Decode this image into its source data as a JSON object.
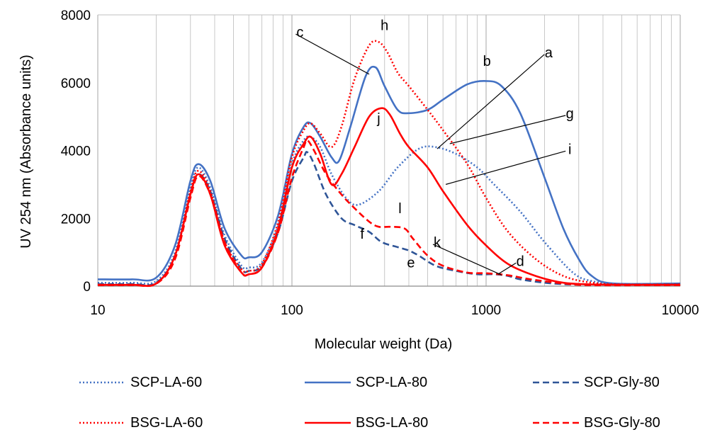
{
  "chart_data": {
    "type": "line",
    "xlabel": "Molecular weight (Da)",
    "ylabel": "UV 254 nm (Absorbance units)",
    "xscale": "log",
    "xlim": [
      10,
      10000
    ],
    "ylim": [
      0,
      8000
    ],
    "yticks": [
      "0",
      "2000",
      "4000",
      "6000",
      "8000"
    ],
    "xticks": [
      "10",
      "100",
      "1000",
      "10000"
    ],
    "xtick_values": [
      10,
      100,
      1000,
      10000
    ],
    "ytick_values": [
      0,
      2000,
      4000,
      6000,
      8000
    ],
    "grid": "vertical minor and major gridlines",
    "legend_position": "bottom",
    "colors": {
      "scp": "#4472c4",
      "bsg": "#ff0000"
    },
    "series": [
      {
        "name": "SCP-LA-60",
        "color": "#4472c4",
        "dash": "dotted",
        "x": [
          10,
          15,
          20,
          25,
          30,
          33,
          38,
          45,
          55,
          60,
          70,
          85,
          100,
          115,
          125,
          140,
          160,
          190,
          220,
          280,
          350,
          450,
          550,
          700,
          900,
          1100,
          1500,
          2000,
          2800,
          3500,
          5000,
          10000
        ],
        "y": [
          100,
          100,
          150,
          1000,
          2900,
          3500,
          2900,
          1500,
          600,
          550,
          700,
          1800,
          3600,
          4300,
          4400,
          4100,
          3300,
          2600,
          2400,
          2800,
          3500,
          4050,
          4100,
          3900,
          3500,
          3000,
          2200,
          1300,
          400,
          150,
          60,
          60
        ]
      },
      {
        "name": "SCP-LA-80",
        "color": "#4472c4",
        "dash": "solid",
        "x": [
          10,
          15,
          20,
          25,
          30,
          33,
          38,
          45,
          55,
          60,
          70,
          85,
          100,
          115,
          125,
          140,
          160,
          175,
          200,
          240,
          270,
          300,
          350,
          400,
          500,
          600,
          800,
          1000,
          1200,
          1500,
          2000,
          2500,
          3000,
          3500,
          4500,
          10000
        ],
        "y": [
          200,
          200,
          250,
          1200,
          3100,
          3600,
          3100,
          1700,
          900,
          850,
          1000,
          2100,
          3900,
          4700,
          4800,
          4400,
          3800,
          3700,
          4700,
          6200,
          6450,
          5900,
          5200,
          5100,
          5200,
          5500,
          5950,
          6050,
          5900,
          5100,
          3200,
          1700,
          800,
          300,
          80,
          80
        ]
      },
      {
        "name": "SCP-Gly-80",
        "color": "#2f5597",
        "dash": "dashed",
        "x": [
          10,
          15,
          20,
          25,
          30,
          33,
          38,
          45,
          55,
          60,
          70,
          85,
          100,
          115,
          120,
          130,
          150,
          180,
          210,
          250,
          290,
          350,
          400,
          450,
          550,
          700,
          900,
          1100,
          1300,
          1500,
          2000,
          2500,
          3000,
          10000
        ],
        "y": [
          60,
          60,
          100,
          900,
          2700,
          3300,
          2800,
          1400,
          500,
          450,
          600,
          1600,
          3100,
          3800,
          3950,
          3600,
          2700,
          2000,
          1800,
          1600,
          1300,
          1150,
          1050,
          900,
          600,
          450,
          350,
          350,
          300,
          200,
          100,
          60,
          50,
          50
        ]
      },
      {
        "name": "BSG-LA-60",
        "color": "#ff0000",
        "dash": "dotted",
        "x": [
          10,
          15,
          20,
          25,
          30,
          33,
          38,
          45,
          55,
          60,
          70,
          85,
          100,
          115,
          125,
          140,
          160,
          180,
          210,
          250,
          280,
          310,
          350,
          400,
          500,
          600,
          800,
          1000,
          1300,
          1800,
          2500,
          3500,
          5000,
          10000
        ],
        "y": [
          40,
          40,
          80,
          900,
          2800,
          3400,
          2800,
          1300,
          500,
          450,
          650,
          1900,
          3800,
          4600,
          4800,
          4500,
          4100,
          4700,
          6100,
          7100,
          7200,
          6900,
          6300,
          5900,
          5200,
          4600,
          3600,
          2600,
          1600,
          800,
          300,
          100,
          50,
          50
        ]
      },
      {
        "name": "BSG-LA-80",
        "color": "#ff0000",
        "dash": "solid",
        "x": [
          10,
          15,
          20,
          25,
          30,
          33,
          38,
          45,
          55,
          60,
          70,
          85,
          100,
          115,
          125,
          140,
          160,
          180,
          210,
          250,
          290,
          320,
          360,
          400,
          500,
          600,
          800,
          1000,
          1300,
          1800,
          2500,
          3500,
          5000,
          10000
        ],
        "y": [
          40,
          40,
          80,
          900,
          2700,
          3300,
          2700,
          1200,
          400,
          350,
          550,
          1700,
          3500,
          4200,
          4400,
          3900,
          3000,
          3300,
          4100,
          5000,
          5250,
          5050,
          4500,
          4100,
          3500,
          2800,
          1800,
          1200,
          650,
          300,
          100,
          50,
          40,
          40
        ]
      },
      {
        "name": "BSG-Gly-80",
        "color": "#ff0000",
        "dash": "dashed",
        "x": [
          10,
          15,
          20,
          25,
          30,
          33,
          38,
          45,
          55,
          60,
          70,
          85,
          100,
          115,
          120,
          130,
          150,
          180,
          210,
          250,
          280,
          320,
          380,
          420,
          500,
          600,
          800,
          1000,
          1300,
          1700,
          2500,
          3500,
          10000
        ],
        "y": [
          30,
          30,
          70,
          800,
          2600,
          3250,
          2700,
          1300,
          400,
          350,
          550,
          1600,
          3200,
          4100,
          4300,
          4000,
          3300,
          2700,
          2300,
          1900,
          1750,
          1750,
          1700,
          1400,
          900,
          600,
          400,
          380,
          320,
          200,
          80,
          30,
          30
        ]
      }
    ],
    "annotations": [
      {
        "label": "a",
        "x": 560,
        "y": 4050,
        "text_x": 2100,
        "text_y": 6750
      },
      {
        "label": "b",
        "x": null,
        "y": null,
        "text_x": 1010,
        "text_y": 6500
      },
      {
        "label": "c",
        "x": 250,
        "y": 6250,
        "text_x": 110,
        "text_y": 7350
      },
      {
        "label": "d",
        "x": 1150,
        "y": 350,
        "text_x": 1500,
        "text_y": 600
      },
      {
        "label": "e",
        "x": null,
        "y": null,
        "text_x": 410,
        "text_y": 550
      },
      {
        "label": "f",
        "x": null,
        "y": null,
        "text_x": 230,
        "text_y": 1400
      },
      {
        "label": "g",
        "x": 650,
        "y": 4200,
        "text_x": 2700,
        "text_y": 4950
      },
      {
        "label": "h",
        "x": null,
        "y": null,
        "text_x": 300,
        "text_y": 7550
      },
      {
        "label": "i",
        "x": 620,
        "y": 3000,
        "text_x": 2700,
        "text_y": 3900
      },
      {
        "label": "j",
        "x": null,
        "y": null,
        "text_x": 280,
        "text_y": 4800
      },
      {
        "label": "k",
        "x": 1200,
        "y": 330,
        "text_x": 560,
        "text_y": 1150
      },
      {
        "label": "l",
        "x": null,
        "y": null,
        "text_x": 360,
        "text_y": 2150
      }
    ]
  }
}
